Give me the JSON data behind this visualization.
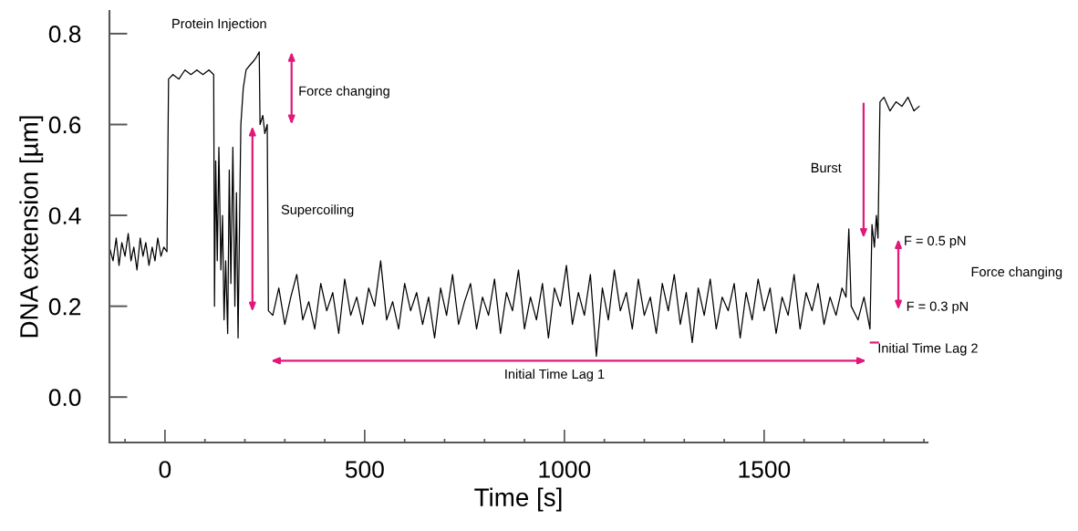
{
  "chart_data": {
    "type": "line",
    "xlabel": "Time [s]",
    "ylabel": "DNA extension [µm]",
    "xlim": [
      -139,
      1909
    ],
    "ylim": [
      -0.1,
      0.85
    ],
    "xticks": [
      0,
      500,
      1000,
      1500
    ],
    "yticks": [
      {
        "value": 0,
        "label": "0.0"
      },
      0.2,
      0.4,
      0.6,
      0.8
    ],
    "grid": false,
    "legend": false,
    "marker": "none",
    "line_style": "solid",
    "series": [
      {
        "color": "#000000",
        "x": [
          -139,
          -130,
          -122,
          -115,
          -108,
          -100,
          -92,
          -85,
          -78,
          -70,
          -62,
          -55,
          -48,
          -40,
          -32,
          -25,
          -18,
          -10,
          -3,
          5,
          9,
          20,
          35,
          50,
          65,
          80,
          95,
          110,
          122,
          124,
          127,
          131,
          135,
          140,
          144,
          148,
          152,
          157,
          161,
          165,
          170,
          175,
          179,
          183,
          187,
          190,
          196,
          203,
          212,
          222,
          230,
          236,
          238,
          245,
          250,
          256,
          259,
          270,
          285,
          300,
          315,
          330,
          345,
          360,
          375,
          390,
          405,
          420,
          435,
          450,
          465,
          480,
          495,
          510,
          525,
          540,
          555,
          570,
          585,
          600,
          615,
          630,
          645,
          660,
          675,
          690,
          705,
          720,
          735,
          750,
          765,
          780,
          795,
          810,
          825,
          840,
          855,
          870,
          885,
          900,
          915,
          930,
          945,
          960,
          975,
          990,
          1005,
          1020,
          1035,
          1050,
          1065,
          1080,
          1095,
          1110,
          1125,
          1140,
          1155,
          1170,
          1185,
          1200,
          1215,
          1230,
          1245,
          1260,
          1275,
          1290,
          1305,
          1320,
          1335,
          1350,
          1365,
          1380,
          1395,
          1410,
          1425,
          1440,
          1455,
          1470,
          1485,
          1500,
          1515,
          1530,
          1545,
          1560,
          1575,
          1590,
          1605,
          1620,
          1635,
          1650,
          1665,
          1680,
          1695,
          1705,
          1712,
          1718,
          1735,
          1750,
          1765,
          1770,
          1776,
          1781,
          1785,
          1790,
          1800,
          1815,
          1830,
          1845,
          1860,
          1875,
          1888
        ],
        "values": [
          0.33,
          0.3,
          0.35,
          0.29,
          0.34,
          0.31,
          0.36,
          0.3,
          0.33,
          0.28,
          0.35,
          0.31,
          0.34,
          0.29,
          0.33,
          0.3,
          0.35,
          0.31,
          0.33,
          0.32,
          0.7,
          0.71,
          0.7,
          0.72,
          0.71,
          0.72,
          0.71,
          0.72,
          0.71,
          0.2,
          0.52,
          0.3,
          0.55,
          0.28,
          0.4,
          0.17,
          0.3,
          0.14,
          0.5,
          0.25,
          0.55,
          0.2,
          0.45,
          0.13,
          0.4,
          0.6,
          0.68,
          0.72,
          0.73,
          0.74,
          0.75,
          0.76,
          0.6,
          0.62,
          0.58,
          0.6,
          0.19,
          0.18,
          0.24,
          0.16,
          0.22,
          0.27,
          0.17,
          0.21,
          0.15,
          0.25,
          0.19,
          0.23,
          0.14,
          0.26,
          0.18,
          0.22,
          0.16,
          0.24,
          0.2,
          0.3,
          0.17,
          0.21,
          0.15,
          0.25,
          0.19,
          0.23,
          0.16,
          0.22,
          0.13,
          0.24,
          0.18,
          0.27,
          0.16,
          0.21,
          0.25,
          0.15,
          0.22,
          0.18,
          0.26,
          0.14,
          0.23,
          0.19,
          0.28,
          0.15,
          0.22,
          0.17,
          0.25,
          0.13,
          0.24,
          0.2,
          0.29,
          0.16,
          0.23,
          0.18,
          0.27,
          0.09,
          0.24,
          0.17,
          0.28,
          0.19,
          0.23,
          0.15,
          0.26,
          0.18,
          0.22,
          0.14,
          0.25,
          0.19,
          0.27,
          0.16,
          0.23,
          0.12,
          0.24,
          0.18,
          0.26,
          0.15,
          0.22,
          0.19,
          0.25,
          0.13,
          0.23,
          0.17,
          0.26,
          0.19,
          0.24,
          0.14,
          0.22,
          0.18,
          0.27,
          0.15,
          0.23,
          0.19,
          0.25,
          0.16,
          0.22,
          0.18,
          0.24,
          0.22,
          0.37,
          0.2,
          0.17,
          0.22,
          0.15,
          0.38,
          0.33,
          0.4,
          0.35,
          0.65,
          0.66,
          0.63,
          0.65,
          0.64,
          0.66,
          0.63,
          0.64
        ]
      }
    ],
    "annotations": [
      "Protein Injection",
      "Force changing",
      "Supercoiling",
      "Burst",
      "F = 0.5 pN",
      "Force changing",
      "F = 0.3 pN",
      "Initial Time Lag 2",
      "Initial Time Lag 1"
    ]
  }
}
